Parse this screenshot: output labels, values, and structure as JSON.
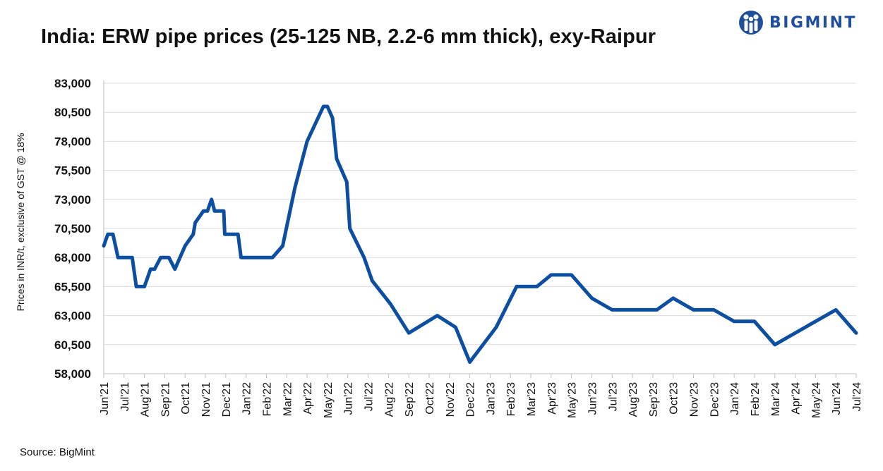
{
  "title": "India: ERW pipe prices (25-125 NB, 2.2-6 mm thick), exy-Raipur",
  "brand": {
    "name": "BIGMINT",
    "color": "#1f4e9c"
  },
  "source": "Source: BigMint",
  "chart_data": {
    "type": "line",
    "title": "India: ERW pipe prices (25-125 NB, 2.2-6 mm thick), exy-Raipur",
    "ylabel": "Prices in INR/t, exclusive of GST @ 18%",
    "xlabel": "",
    "ylim": [
      58000,
      83000
    ],
    "yticks": [
      58000,
      60500,
      63000,
      65500,
      68000,
      70500,
      73000,
      75500,
      78000,
      80500,
      83000
    ],
    "ytick_labels": [
      "58,000",
      "60,500",
      "63,000",
      "65,500",
      "68,000",
      "70,500",
      "73,000",
      "75,500",
      "78,000",
      "80,500",
      "83,000"
    ],
    "xlim": [
      0,
      37
    ],
    "categories": [
      "Jun'21",
      "Jul'21",
      "Aug'21",
      "Sep'21",
      "Oct'21",
      "Nov'21",
      "Dec'21",
      "Jan'22",
      "Feb'22",
      "Mar'22",
      "Apr'22",
      "May'22",
      "Jun'22",
      "Jul'22",
      "Aug'22",
      "Sep'22",
      "Oct'22",
      "Nov'22",
      "Dec'22",
      "Jan'23",
      "Feb'23",
      "Mar'23",
      "Apr'23",
      "May'23",
      "Jun'23",
      "Jul'23",
      "Aug'23",
      "Sep'23",
      "Oct'23",
      "Nov'23",
      "Dec'23",
      "Jan'24",
      "Feb'24",
      "Mar'24",
      "Apr'24",
      "May'24",
      "Jun'24",
      "Jul'24"
    ],
    "grid": true,
    "line_color": "#0b4ea2",
    "series": [
      {
        "name": "ERW pipe price",
        "points": [
          [
            0.0,
            69000
          ],
          [
            0.2,
            70000
          ],
          [
            0.45,
            70000
          ],
          [
            0.7,
            68000
          ],
          [
            1.1,
            68000
          ],
          [
            1.4,
            68000
          ],
          [
            1.6,
            65500
          ],
          [
            2.0,
            65500
          ],
          [
            2.3,
            67000
          ],
          [
            2.5,
            67000
          ],
          [
            2.8,
            68000
          ],
          [
            3.2,
            68000
          ],
          [
            3.5,
            67000
          ],
          [
            4.0,
            69000
          ],
          [
            4.4,
            70000
          ],
          [
            4.5,
            71000
          ],
          [
            4.9,
            72000
          ],
          [
            5.1,
            72000
          ],
          [
            5.3,
            73000
          ],
          [
            5.45,
            72000
          ],
          [
            5.9,
            72000
          ],
          [
            5.95,
            70000
          ],
          [
            6.6,
            70000
          ],
          [
            6.75,
            68000
          ],
          [
            7.5,
            68000
          ],
          [
            8.0,
            68000
          ],
          [
            8.3,
            68000
          ],
          [
            8.8,
            69000
          ],
          [
            9.4,
            74000
          ],
          [
            10.0,
            78000
          ],
          [
            10.8,
            81000
          ],
          [
            11.0,
            81000
          ],
          [
            11.25,
            80000
          ],
          [
            11.45,
            76500
          ],
          [
            11.95,
            74500
          ],
          [
            12.1,
            70500
          ],
          [
            12.8,
            68000
          ],
          [
            13.2,
            66000
          ],
          [
            14.1,
            64000
          ],
          [
            15.0,
            61500
          ],
          [
            16.4,
            63000
          ],
          [
            17.3,
            62000
          ],
          [
            18.0,
            59000
          ],
          [
            19.3,
            62000
          ],
          [
            20.3,
            65500
          ],
          [
            21.3,
            65500
          ],
          [
            22.0,
            66500
          ],
          [
            23.0,
            66500
          ],
          [
            24.0,
            64500
          ],
          [
            25.0,
            63500
          ],
          [
            27.2,
            63500
          ],
          [
            28.0,
            64500
          ],
          [
            29.0,
            63500
          ],
          [
            30.0,
            63500
          ],
          [
            31.0,
            62500
          ],
          [
            32.0,
            62500
          ],
          [
            33.0,
            60500
          ],
          [
            34.0,
            61500
          ],
          [
            35.0,
            62500
          ],
          [
            36.0,
            63500
          ],
          [
            37.0,
            61500
          ]
        ]
      }
    ]
  }
}
